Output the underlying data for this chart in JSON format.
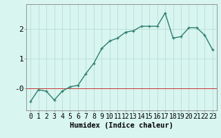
{
  "x": [
    0,
    1,
    2,
    3,
    4,
    5,
    6,
    7,
    8,
    9,
    10,
    11,
    12,
    13,
    14,
    15,
    16,
    17,
    18,
    19,
    20,
    21,
    22,
    23
  ],
  "y": [
    -0.45,
    -0.05,
    -0.1,
    -0.4,
    -0.1,
    0.05,
    0.1,
    0.5,
    0.85,
    1.35,
    1.6,
    1.7,
    1.9,
    1.95,
    2.1,
    2.1,
    2.1,
    2.55,
    1.7,
    1.75,
    2.05,
    2.05,
    1.8,
    1.3
  ],
  "line_color": "#2d7d6e",
  "marker": "+",
  "marker_size": 3,
  "bg_color": "#d8f5f0",
  "grid_color": "#b8ddd8",
  "xlabel": "Humidex (Indice chaleur)",
  "ytick_labels": [
    "-0",
    "1",
    "2"
  ],
  "ylim": [
    -0.75,
    2.85
  ],
  "xlim": [
    -0.5,
    23.5
  ],
  "xlabel_fontsize": 7.5,
  "tick_fontsize": 7,
  "line_width": 1.0,
  "red_line_color": "#cc3333",
  "red_line_y": 0.0
}
